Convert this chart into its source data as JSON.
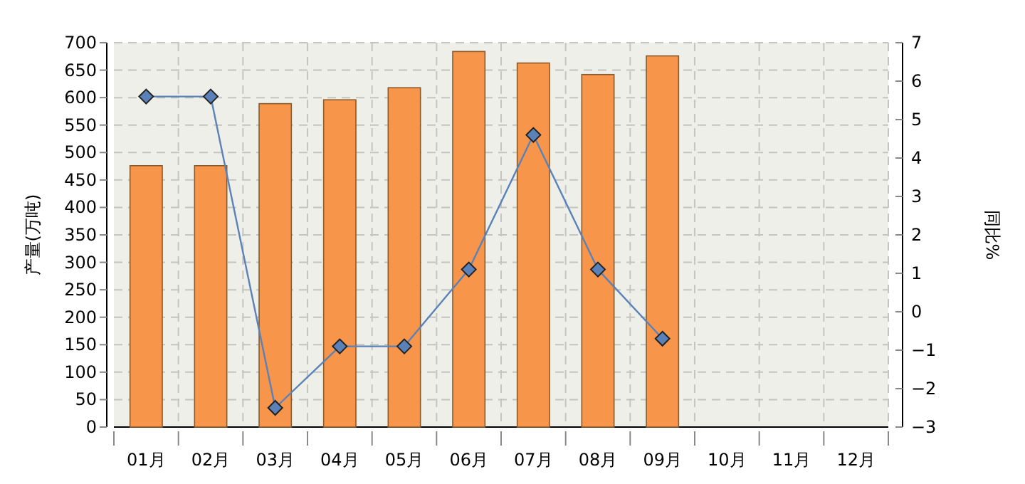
{
  "chart_data": {
    "type": "bar",
    "ylabel": "产量(万吨)",
    "y2label": "同比%",
    "categories": [
      "01月",
      "02月",
      "03月",
      "04月",
      "05月",
      "06月",
      "07月",
      "08月",
      "09月",
      "10月",
      "11月",
      "12月"
    ],
    "series": [
      {
        "color": "#f7964a",
        "values": [
          476,
          476,
          589,
          596,
          618,
          684,
          663,
          642,
          676,
          null,
          null,
          null
        ]
      },
      {
        "type": "line",
        "axis": "y2",
        "color": "#5a82b8",
        "marker": "diamond",
        "values": [
          5.6,
          5.6,
          -2.5,
          -0.9,
          -0.9,
          1.1,
          4.6,
          1.1,
          -0.7,
          null,
          null,
          null
        ]
      }
    ],
    "ylim": [
      0,
      700
    ],
    "yticks": [
      0,
      50,
      100,
      150,
      200,
      250,
      300,
      350,
      400,
      450,
      500,
      550,
      600,
      650,
      700
    ],
    "y2lim": [
      -3,
      7
    ],
    "y2ticks": [
      -3,
      -2,
      -1,
      0,
      1,
      2,
      3,
      4,
      5,
      6,
      7
    ],
    "grid": true
  }
}
